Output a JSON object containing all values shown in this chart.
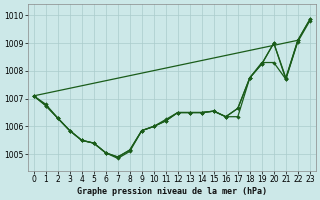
{
  "xlabel": "Graphe pression niveau de la mer (hPa)",
  "ylim": [
    1004.4,
    1010.4
  ],
  "xlim": [
    -0.5,
    23.5
  ],
  "yticks": [
    1005,
    1006,
    1007,
    1008,
    1009,
    1010
  ],
  "xticks": [
    0,
    1,
    2,
    3,
    4,
    5,
    6,
    7,
    8,
    9,
    10,
    11,
    12,
    13,
    14,
    15,
    16,
    17,
    18,
    19,
    20,
    21,
    22,
    23
  ],
  "bg_color": "#cce8e8",
  "grid_color": "#aacccc",
  "line_color": "#1a5c1a",
  "sweep_line": [
    [
      0,
      22
    ],
    [
      1007.1,
      1009.1
    ]
  ],
  "series_with_markers": [
    [
      1007.1,
      1006.8,
      1006.3,
      1005.85,
      1005.5,
      1005.4,
      1005.05,
      1004.85,
      1005.1,
      1005.85,
      1006.0,
      1006.25,
      1006.5,
      1006.5,
      1006.5,
      1006.55,
      1006.35,
      1006.35,
      1007.75,
      1008.3,
      1008.3,
      1007.7,
      1009.05,
      1009.8
    ],
    [
      1007.1,
      1006.75,
      1006.3,
      1005.85,
      1005.5,
      1005.4,
      1005.05,
      1004.9,
      1005.15,
      1005.85,
      1006.0,
      1006.2,
      1006.5,
      1006.5,
      1006.5,
      1006.55,
      1006.35,
      1006.65,
      1007.75,
      1008.25,
      1009.0,
      1007.75,
      1009.1,
      1009.85
    ],
    [
      1007.1,
      1006.75,
      1006.3,
      1005.85,
      1005.5,
      1005.4,
      1005.05,
      1004.9,
      1005.15,
      1005.85,
      1006.0,
      1006.2,
      1006.5,
      1006.5,
      1006.5,
      1006.55,
      1006.35,
      1006.65,
      1007.75,
      1008.25,
      1009.0,
      1007.7,
      1009.1,
      1009.85
    ]
  ],
  "font_family": "monospace",
  "tick_fontsize": 5.5,
  "lw": 0.9
}
